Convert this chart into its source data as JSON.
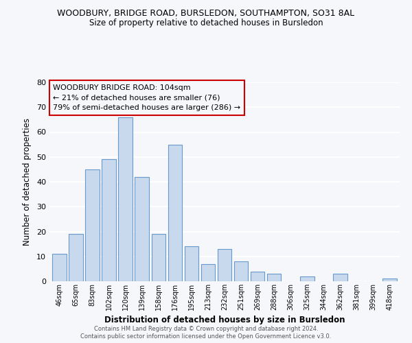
{
  "title": "WOODBURY, BRIDGE ROAD, BURSLEDON, SOUTHAMPTON, SO31 8AL",
  "subtitle": "Size of property relative to detached houses in Bursledon",
  "xlabel": "Distribution of detached houses by size in Bursledon",
  "ylabel": "Number of detached properties",
  "categories": [
    "46sqm",
    "65sqm",
    "83sqm",
    "102sqm",
    "120sqm",
    "139sqm",
    "158sqm",
    "176sqm",
    "195sqm",
    "213sqm",
    "232sqm",
    "251sqm",
    "269sqm",
    "288sqm",
    "306sqm",
    "325sqm",
    "344sqm",
    "362sqm",
    "381sqm",
    "399sqm",
    "418sqm"
  ],
  "values": [
    11,
    19,
    45,
    49,
    66,
    42,
    19,
    55,
    14,
    7,
    13,
    8,
    4,
    3,
    0,
    2,
    0,
    3,
    0,
    0,
    1
  ],
  "bar_color": "#c9d9ed",
  "bar_edge_color": "#6699cc",
  "ylim": [
    0,
    80
  ],
  "yticks": [
    0,
    10,
    20,
    30,
    40,
    50,
    60,
    70,
    80
  ],
  "annotation_line1": "WOODBURY BRIDGE ROAD: 104sqm",
  "annotation_line2": "← 21% of detached houses are smaller (76)",
  "annotation_line3": "79% of semi-detached houses are larger (286) →",
  "annotation_box_edgecolor": "#cc0000",
  "footer_line1": "Contains HM Land Registry data © Crown copyright and database right 2024.",
  "footer_line2": "Contains public sector information licensed under the Open Government Licence v3.0.",
  "background_color": "#f5f7fa",
  "grid_color": "#ffffff"
}
